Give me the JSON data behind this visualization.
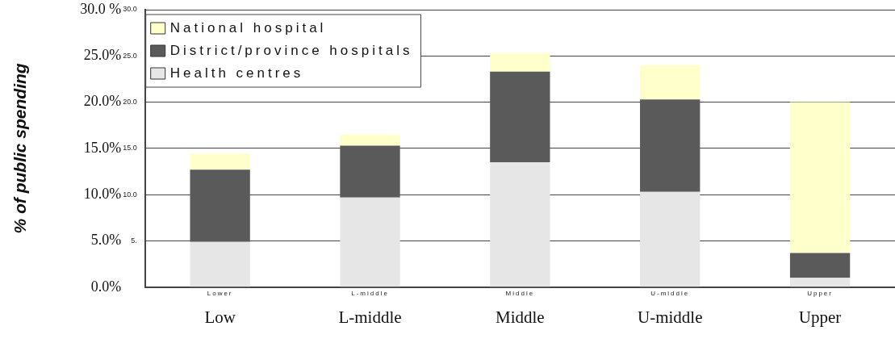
{
  "chart_data": {
    "type": "bar",
    "stacked": true,
    "ylabel": "% of public spending",
    "categories": [
      "Low",
      "L-middle",
      "Middle",
      "U-middle",
      "Upper"
    ],
    "series": [
      {
        "name": "Health centres",
        "color": "#e6e6e6",
        "values": [
          4.9,
          9.7,
          13.5,
          10.3,
          1.0
        ]
      },
      {
        "name": "District/province hospitals",
        "color": "#5a5a5a",
        "values": [
          7.8,
          5.6,
          9.8,
          10.0,
          2.7
        ]
      },
      {
        "name": "National hospital",
        "color": "#ffffcc",
        "values": [
          1.7,
          1.2,
          2.0,
          3.7,
          16.3
        ]
      }
    ],
    "ylim": [
      0,
      30
    ],
    "yticks": [
      {
        "value": 0,
        "label": "0.0%"
      },
      {
        "value": 5,
        "label": "5.0%"
      },
      {
        "value": 10,
        "label": "10.0%"
      },
      {
        "value": 15,
        "label": "15.0%"
      },
      {
        "value": 20,
        "label": "20.0%"
      },
      {
        "value": 25,
        "label": "25.0%"
      },
      {
        "value": 30,
        "label": "30.0 %"
      }
    ],
    "y2lim": [
      0,
      30
    ],
    "y2ticks": [
      {
        "value": 0,
        "label": null
      },
      {
        "value": 5,
        "label": "5."
      },
      {
        "value": 10,
        "label": "10.0"
      },
      {
        "value": 15,
        "label": "15.0"
      },
      {
        "value": 20,
        "label": "20.0"
      },
      {
        "value": 25,
        "label": "25.0"
      },
      {
        "value": 30,
        "label": "30.0"
      }
    ],
    "annotations": [
      "Lower",
      "L-middle",
      "Middle",
      "U-middle",
      "Upper"
    ],
    "grid": "y",
    "legend": "top left"
  }
}
